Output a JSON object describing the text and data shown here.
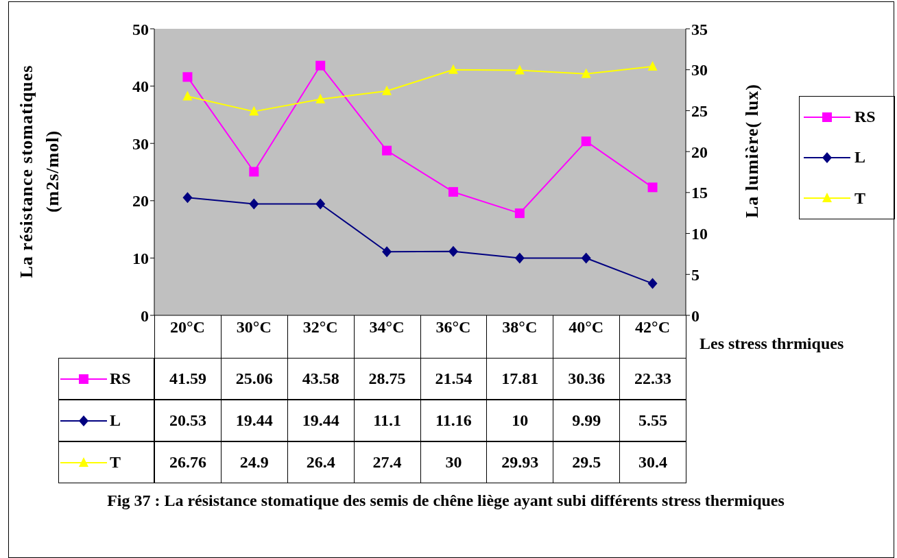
{
  "chart_data": {
    "type": "line",
    "categories": [
      "20°C",
      "30°C",
      "32°C",
      "34°C",
      "36°C",
      "38°C",
      "40°C",
      "42°C"
    ],
    "xlabel": "Les stress thrmiques",
    "ylabel": "La résistance stomatiques (m2s/mol)",
    "y2label": "La lumière( lux)",
    "ylim": [
      0,
      50
    ],
    "yticks": [
      0,
      10,
      20,
      30,
      40,
      50
    ],
    "y2lim": [
      0,
      35
    ],
    "y2ticks": [
      0,
      5,
      10,
      15,
      20,
      25,
      30,
      35
    ],
    "legend": "right",
    "data_labels": true,
    "series": [
      {
        "name": "RS",
        "color": "#ff00ff",
        "marker": "square",
        "values": [
          41.59,
          25.06,
          43.58,
          28.75,
          21.54,
          17.81,
          30.36,
          22.33
        ]
      },
      {
        "name": "L",
        "color": "#000080",
        "marker": "diamond",
        "values": [
          20.53,
          19.44,
          19.44,
          11.1,
          11.16,
          10,
          9.99,
          5.55
        ]
      },
      {
        "name": "T",
        "color": "#ffff00",
        "marker": "triangle",
        "axis": "y2",
        "values": [
          26.76,
          24.9,
          26.4,
          27.4,
          30,
          29.93,
          29.5,
          30.4
        ]
      }
    ],
    "annotations": [
      "Fig 37 : La résistance stomatique des semis de chêne liège ayant subi différents stress thermiques"
    ]
  }
}
